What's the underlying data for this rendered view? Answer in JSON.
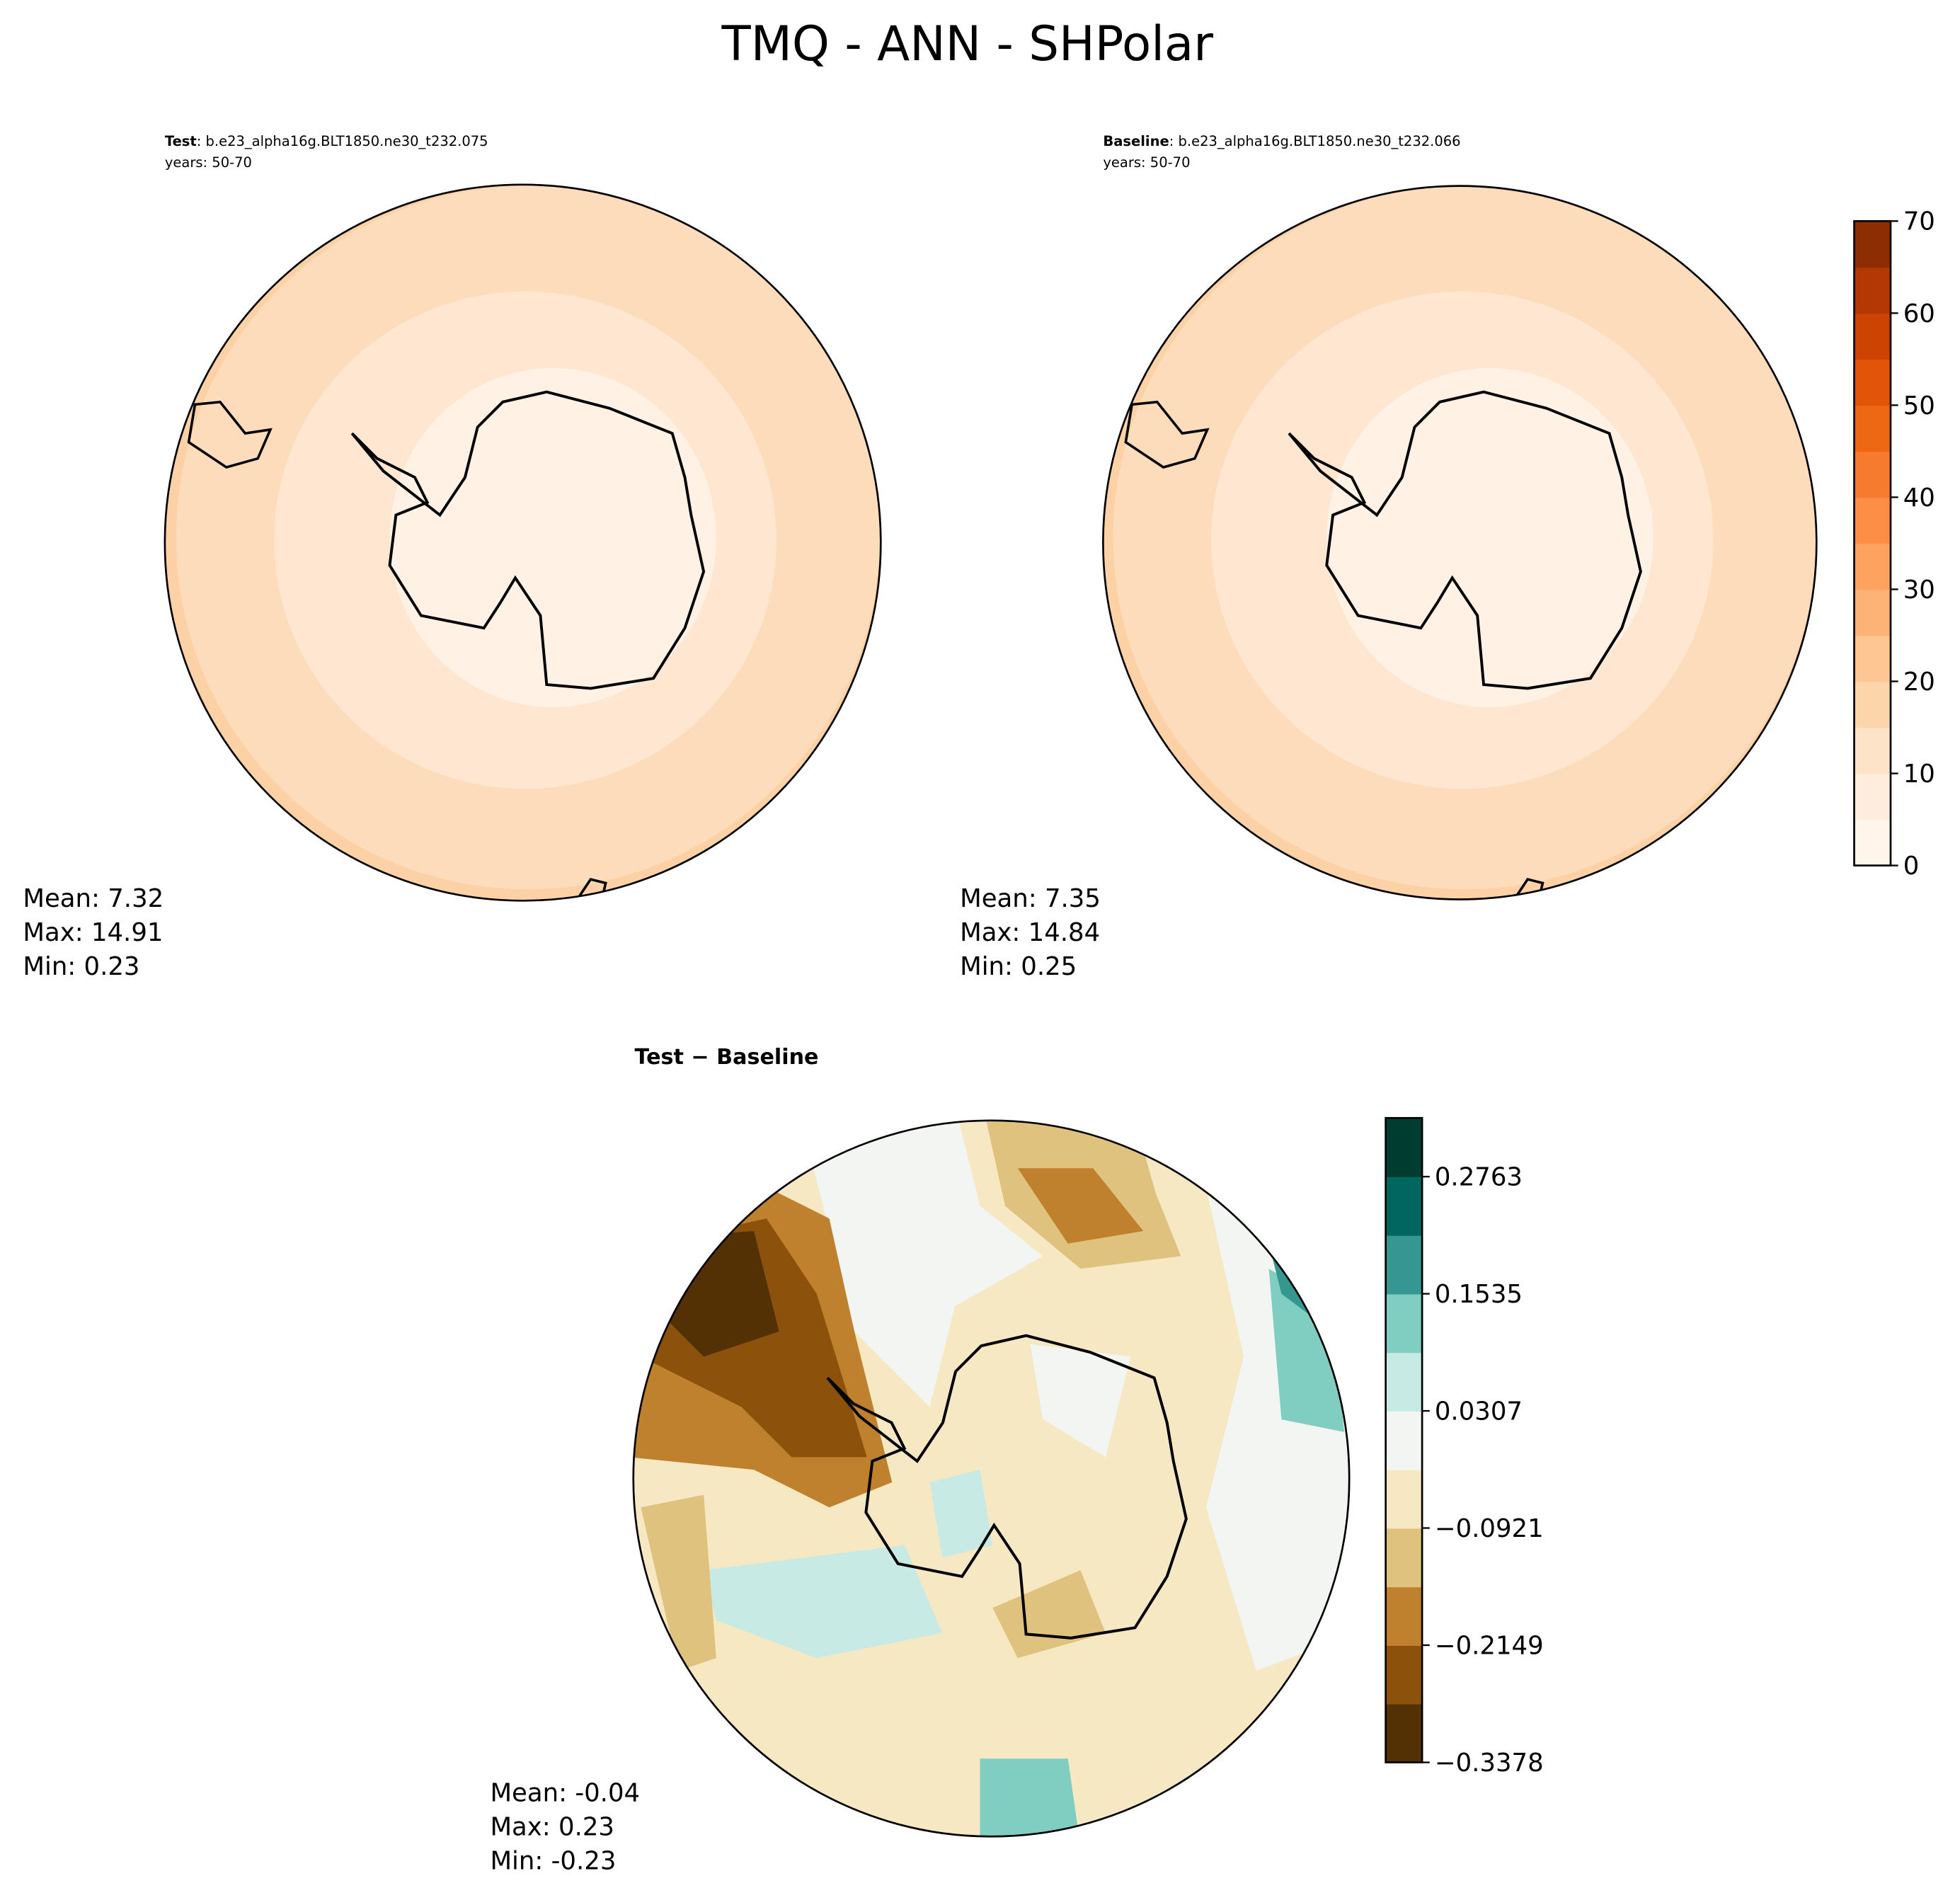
{
  "title": "TMQ - ANN - SHPolar",
  "panels": [
    {
      "label": "Test",
      "case": ": b.e23_alpha16g.BLT1850.ne30_t232.075",
      "years": "years: 50-70",
      "stats": [
        "Mean:  7.32",
        "Max: 14.91",
        "Min:  0.23"
      ]
    },
    {
      "label": "Baseline",
      "case": ": b.e23_alpha16g.BLT1850.ne30_t232.066",
      "years": "years: 50-70",
      "stats": [
        "Mean:  7.35",
        "Max: 14.84",
        "Min:  0.25"
      ]
    }
  ],
  "diff": {
    "label": "Test − Baseline",
    "stats": [
      "Mean: -0.04",
      "Max:  0.23",
      "Min: -0.23"
    ]
  },
  "colorbars": [
    {
      "lim": [
        0,
        70
      ],
      "ticks": [
        0,
        10,
        20,
        30,
        40,
        50,
        60,
        70
      ],
      "colors": [
        "#fff5eb",
        "#feeddc",
        "#fde3c7",
        "#fdd5ab",
        "#fdc692",
        "#fdb376",
        "#fda25f",
        "#fd8e46",
        "#f77b2f",
        "#ee6814",
        "#e25509",
        "#cc4302",
        "#b33803",
        "#8c2d04"
      ]
    },
    {
      "lim": [
        -0.3378,
        0.3378
      ],
      "ticks": [
        {
          "value": -0.3378,
          "label": "−0.3378"
        },
        {
          "value": -0.2149,
          "label": "−0.2149"
        },
        {
          "value": -0.0921,
          "label": "−0.0921"
        },
        0.0307,
        0.1535,
        0.2763
      ],
      "colors": [
        "#543005",
        "#8c510a",
        "#bf812d",
        "#dfc27d",
        "#f6e8c3",
        "#f3f5f3",
        "#c7eae5",
        "#80cdc1",
        "#35978f",
        "#01665e",
        "#003c30"
      ]
    }
  ]
}
